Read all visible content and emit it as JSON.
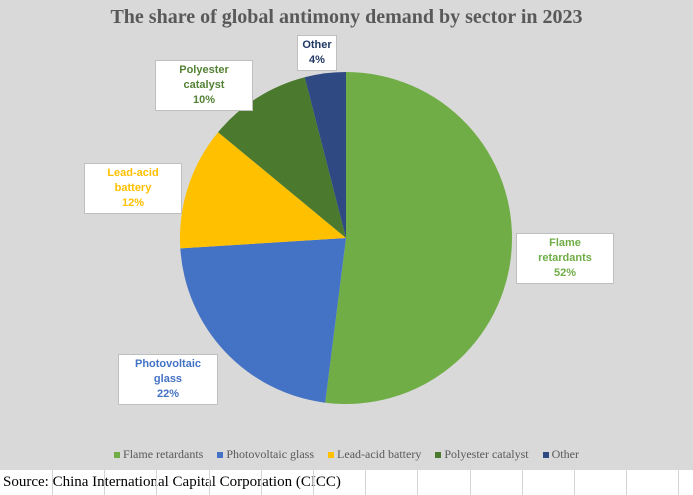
{
  "chart_data": {
    "type": "pie",
    "title": "The share of global antimony demand by sector in 2023",
    "categories": [
      "Flame retardants",
      "Photovoltaic glass",
      "Lead-acid battery",
      "Polyester catalyst",
      "Other"
    ],
    "values": [
      52,
      22,
      12,
      10,
      4
    ],
    "labels": [
      "52%",
      "22%",
      "12%",
      "10%",
      "4%"
    ],
    "colors": [
      "#70ad47",
      "#4472c4",
      "#ffc000",
      "#4b7a2e",
      "#2f4a82"
    ],
    "label_colors": [
      "#70ad47",
      "#4472c4",
      "#ffc000",
      "#548235",
      "#203864"
    ],
    "legend_position": "bottom",
    "start_angle_deg": 0,
    "direction": "clockwise"
  },
  "source": "Source: China International Capital Corporation (CICC)"
}
